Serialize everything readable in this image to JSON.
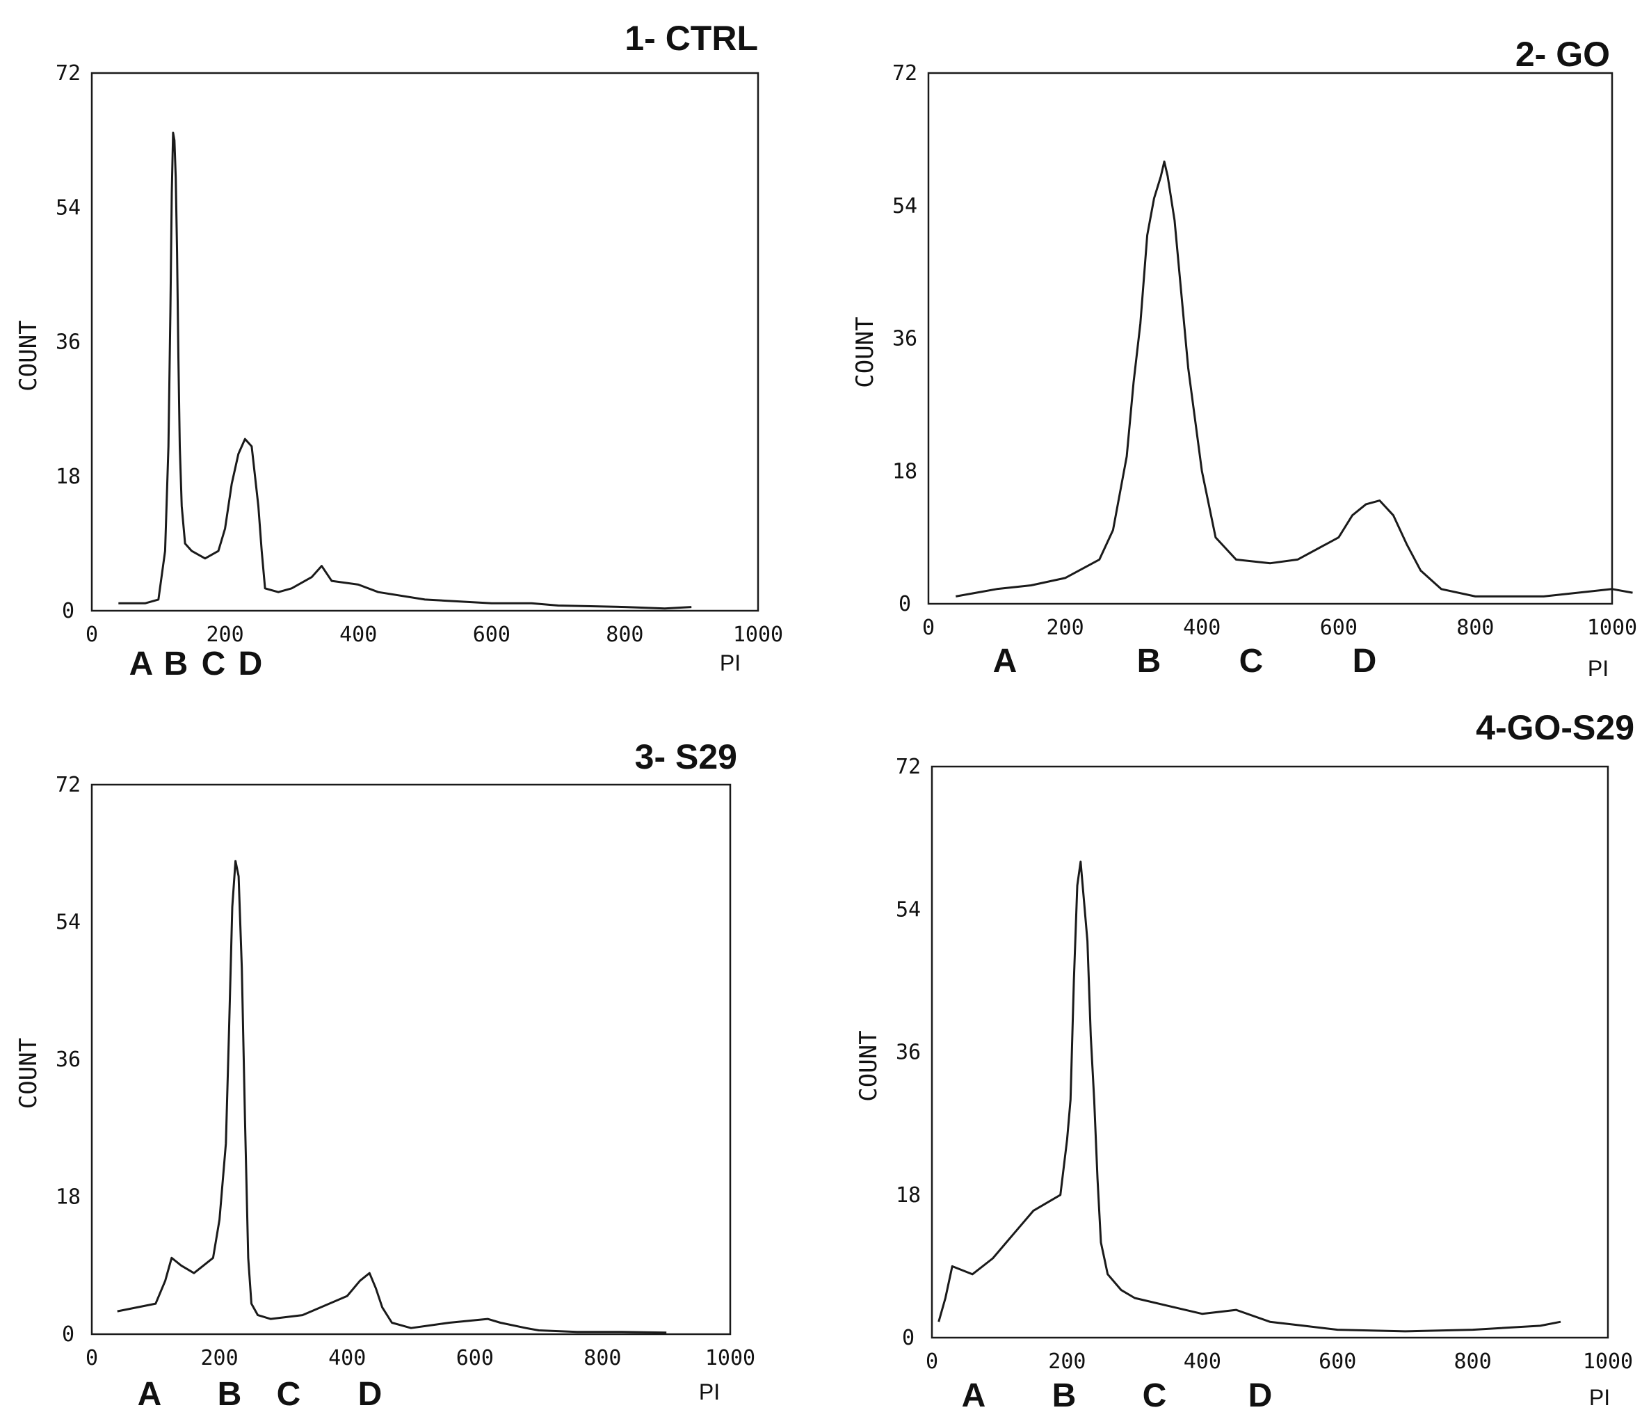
{
  "chart_data": [
    {
      "type": "line",
      "title": "1- CTRL",
      "xlabel": "PI",
      "ylabel": "COUNT",
      "xlim": [
        0,
        1000
      ],
      "ylim": [
        0,
        72
      ],
      "xticks": [
        "0",
        "200",
        "400",
        "600",
        "800",
        "1000"
      ],
      "yticks": [
        "0",
        "18",
        "36",
        "54",
        "72"
      ],
      "region_labels": [
        "A",
        "B",
        "C",
        "D"
      ],
      "series": [
        {
          "x": [
            40,
            80,
            100,
            110,
            115,
            118,
            120,
            122,
            124,
            126,
            128,
            130,
            132,
            135,
            140,
            150,
            170,
            190,
            200,
            210,
            220,
            230,
            240,
            250,
            255,
            260,
            280,
            300,
            330,
            345,
            360,
            400,
            430,
            500,
            600,
            660,
            700,
            800,
            860,
            900
          ],
          "y": [
            1,
            1,
            1.5,
            8,
            22,
            40,
            56,
            64,
            63,
            58,
            48,
            34,
            22,
            14,
            9,
            8,
            7,
            8,
            11,
            17,
            21,
            23,
            22,
            14,
            8,
            3,
            2.5,
            3,
            4.5,
            6,
            4,
            3.5,
            2.5,
            1.5,
            1,
            1,
            0.7,
            0.5,
            0.3,
            0.5
          ]
        }
      ]
    },
    {
      "type": "line",
      "title": "2- GO",
      "xlabel": "PI",
      "ylabel": "COUNT",
      "xlim": [
        0,
        1000
      ],
      "ylim": [
        0,
        72
      ],
      "xticks": [
        "0",
        "200",
        "400",
        "600",
        "800",
        "1000"
      ],
      "yticks": [
        "0",
        "18",
        "36",
        "54",
        "72"
      ],
      "region_labels": [
        "A",
        "B",
        "C",
        "D"
      ],
      "series": [
        {
          "x": [
            40,
            100,
            150,
            200,
            250,
            270,
            290,
            300,
            310,
            320,
            330,
            340,
            345,
            350,
            360,
            370,
            380,
            400,
            420,
            450,
            500,
            540,
            570,
            600,
            620,
            640,
            660,
            680,
            700,
            720,
            750,
            800,
            900,
            1000,
            1030
          ],
          "y": [
            1,
            2,
            2.5,
            3.5,
            6,
            10,
            20,
            30,
            38,
            50,
            55,
            58,
            60,
            58,
            52,
            42,
            32,
            18,
            9,
            6,
            5.5,
            6,
            7.5,
            9,
            12,
            13.5,
            14,
            12,
            8,
            4.5,
            2,
            1,
            1,
            2,
            1.5
          ]
        }
      ]
    },
    {
      "type": "line",
      "title": "3- S29",
      "xlabel": "PI",
      "ylabel": "COUNT",
      "xlim": [
        0,
        1000
      ],
      "ylim": [
        0,
        72
      ],
      "xticks": [
        "0",
        "200",
        "400",
        "600",
        "800",
        "1000"
      ],
      "yticks": [
        "0",
        "18",
        "36",
        "54",
        "72"
      ],
      "region_labels": [
        "A",
        "B",
        "C",
        "D"
      ],
      "series": [
        {
          "x": [
            40,
            100,
            115,
            125,
            140,
            160,
            190,
            200,
            210,
            215,
            220,
            225,
            230,
            235,
            240,
            245,
            250,
            260,
            280,
            330,
            400,
            420,
            435,
            445,
            455,
            470,
            500,
            560,
            620,
            640,
            680,
            700,
            760,
            830,
            900
          ],
          "y": [
            3,
            4,
            7,
            10,
            9,
            8,
            10,
            15,
            25,
            40,
            56,
            62,
            60,
            48,
            28,
            10,
            4,
            2.5,
            2,
            2.5,
            5,
            7,
            8,
            6,
            3.5,
            1.5,
            0.8,
            1.5,
            2,
            1.5,
            0.8,
            0.5,
            0.3,
            0.3,
            0.2
          ]
        }
      ]
    },
    {
      "type": "line",
      "title": "4-GO-S29",
      "xlabel": "PI",
      "ylabel": "COUNT",
      "xlim": [
        0,
        1000
      ],
      "ylim": [
        0,
        72
      ],
      "xticks": [
        "0",
        "200",
        "400",
        "600",
        "800",
        "1000"
      ],
      "yticks": [
        "0",
        "18",
        "36",
        "54",
        "72"
      ],
      "region_labels": [
        "A",
        "B",
        "C",
        "D"
      ],
      "series": [
        {
          "x": [
            10,
            20,
            30,
            60,
            90,
            120,
            150,
            170,
            190,
            200,
            205,
            210,
            215,
            220,
            225,
            230,
            235,
            240,
            245,
            250,
            255,
            260,
            280,
            300,
            350,
            400,
            450,
            500,
            550,
            600,
            700,
            800,
            900,
            930
          ],
          "y": [
            2,
            5,
            9,
            8,
            10,
            13,
            16,
            17,
            18,
            25,
            30,
            45,
            57,
            60,
            55,
            50,
            38,
            30,
            20,
            12,
            10,
            8,
            6,
            5,
            4,
            3,
            3.5,
            2,
            1.5,
            1,
            0.8,
            1,
            1.5,
            2
          ]
        }
      ]
    }
  ]
}
